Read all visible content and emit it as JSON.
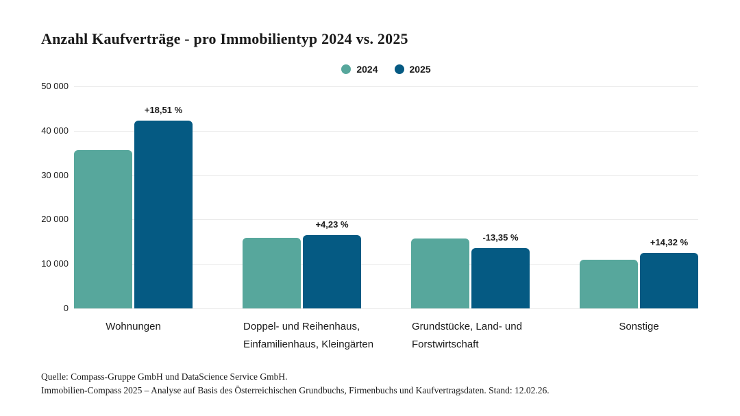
{
  "title": "Anzahl Kaufverträge - pro Immobilientyp 2024 vs. 2025",
  "colors": {
    "series_2024": "#57A79C",
    "series_2025": "#055A83",
    "gridline": "#E9E9E9",
    "text": "#1A1A1A",
    "background": "#FFFFFF"
  },
  "legend": {
    "items": [
      {
        "label": "2024",
        "color": "#57A79C"
      },
      {
        "label": "2025",
        "color": "#055A83"
      }
    ]
  },
  "chart_data": {
    "type": "bar",
    "title": "Anzahl Kaufverträge - pro Immobilientyp 2024 vs. 2025",
    "categories": [
      "Wohnungen",
      "Doppel- und Reihenhaus, Einfamilienhaus, Kleingärten",
      "Grundstücke, Land- und Forstwirtschaft",
      "Sonstige"
    ],
    "category_display": [
      {
        "lines": [
          "Wohnungen"
        ],
        "align": "center"
      },
      {
        "lines": [
          "Doppel- und Reihenhaus,",
          "Einfamilienhaus, Kleingärten"
        ],
        "align": "left"
      },
      {
        "lines": [
          "Grundstücke, Land- und",
          "Forstwirtschaft"
        ],
        "align": "left"
      },
      {
        "lines": [
          "Sonstige"
        ],
        "align": "center"
      }
    ],
    "series": [
      {
        "name": "2024",
        "color": "#57A79C",
        "values": [
          35650,
          15850,
          15740,
          11000
        ]
      },
      {
        "name": "2025",
        "color": "#055A83",
        "values": [
          42250,
          16520,
          13640,
          12575
        ]
      }
    ],
    "pct_change_labels": [
      "+18,51 %",
      "+4,23 %",
      "-13,35 %",
      "+14,32 %"
    ],
    "xlabel": "",
    "ylabel": "",
    "ylim": [
      0,
      50000
    ],
    "yticks": [
      {
        "value": 0,
        "label": "0"
      },
      {
        "value": 10000,
        "label": "10 000"
      },
      {
        "value": 20000,
        "label": "20 000"
      },
      {
        "value": 30000,
        "label": "30 000"
      },
      {
        "value": 40000,
        "label": "40 000"
      },
      {
        "value": 50000,
        "label": "50 000"
      }
    ],
    "grid": true,
    "legend_position": "top-center"
  },
  "source": {
    "line1": "Quelle: Compass-Gruppe GmbH und DataScience Service GmbH.",
    "line2": "Immobilien-Compass 2025 – Analyse auf Basis des Österreichischen Grundbuchs, Firmenbuchs und Kaufvertragsdaten. Stand: 12.02.26."
  }
}
